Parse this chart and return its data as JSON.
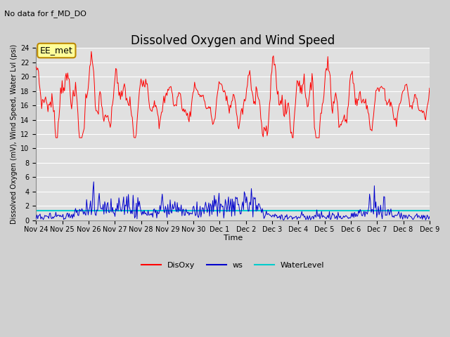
{
  "title": "Dissolved Oxygen and Wind Speed",
  "subtitle": "No data for f_MD_DO",
  "ylabel": "Dissolved Oxygen (mV), Wind Speed, Water Lvl (psi)",
  "xlabel": "Time",
  "annotation": "EE_met",
  "ylim": [
    0,
    24
  ],
  "yticks": [
    0,
    2,
    4,
    6,
    8,
    10,
    12,
    14,
    16,
    18,
    20,
    22,
    24
  ],
  "xtick_labels": [
    "Nov 24",
    "Nov 25",
    "Nov 26",
    "Nov 27",
    "Nov 28",
    "Nov 29",
    "Nov 30",
    "Dec 1",
    "Dec 2",
    "Dec 3",
    "Dec 4",
    "Dec 5",
    "Dec 6",
    "Dec 7",
    "Dec 8",
    "Dec 9"
  ],
  "disoxy_color": "#ff0000",
  "ws_color": "#0000cc",
  "water_level_color": "#00cccc",
  "water_level_value": 1.4,
  "fig_bg_color": "#d0d0d0",
  "plot_bg_color": "#e0e0e0",
  "grid_color": "#ffffff",
  "title_fontsize": 12,
  "subtitle_fontsize": 8,
  "annotation_fontsize": 9,
  "axis_fontsize": 7,
  "ylabel_fontsize": 7,
  "xlabel_fontsize": 8,
  "legend_labels": [
    "DisOxy",
    "ws",
    "WaterLevel"
  ]
}
